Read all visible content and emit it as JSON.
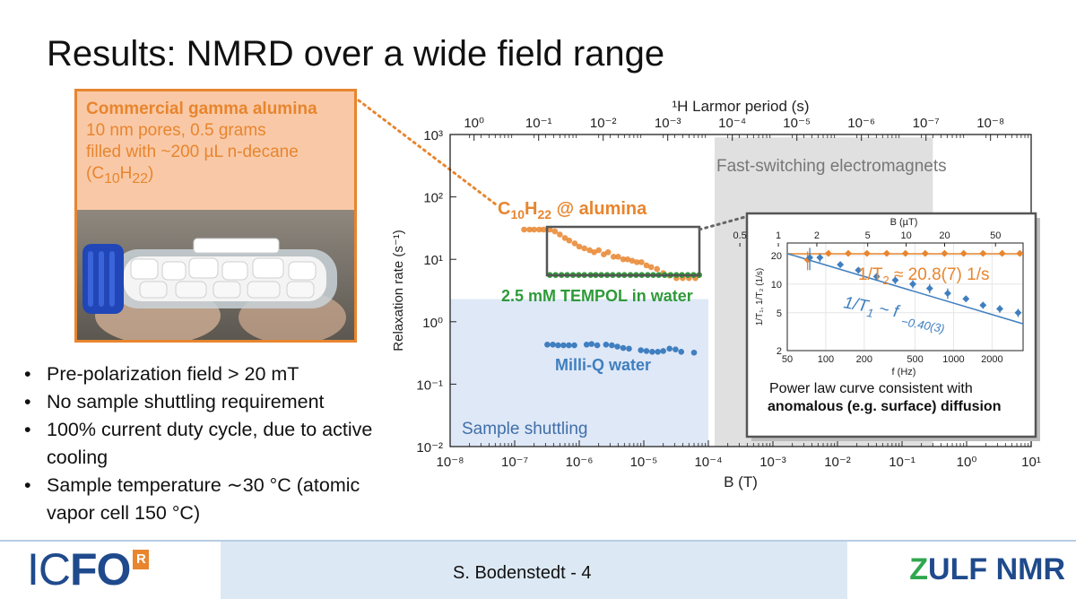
{
  "slide": {
    "title": "Results: NMRD over a wide field range",
    "infobox": {
      "heading": "Commercial gamma alumina",
      "line1": "10 nm pores, 0.5 grams",
      "line2": "filled with ~200 µL n-decane",
      "formula_main": "C",
      "formula_sub1": "10",
      "formula_mid": "H",
      "formula_sub2": "22",
      "formula_open": "(",
      "formula_close": ")"
    },
    "bullets": [
      "Pre-polarization field > 20 mT",
      "No sample shuttling requirement",
      "100% current duty cycle, due to active cooling",
      "Sample temperature ∼30 °C (atomic vapor cell 150 °C)"
    ],
    "footer": {
      "text": "S. Bodenstedt - 4",
      "logo_left_a": "IC",
      "logo_left_b": "FO",
      "logo_left_mark": "R",
      "logo_right_a": "Z",
      "logo_right_b": "ULF NMR"
    }
  },
  "chart_data": [
    {
      "type": "scatter",
      "x_scale": "log",
      "y_scale": "log",
      "xlabel": "B (T)",
      "ylabel": "Relaxation rate (s⁻¹)",
      "top_axis_label": "¹H Larmor period (s)",
      "xlim": [
        1e-08,
        10
      ],
      "ylim": [
        0.01,
        1000
      ],
      "x_tick_labels": [
        "10⁻⁸",
        "10⁻⁷",
        "10⁻⁶",
        "10⁻⁵",
        "10⁻⁴",
        "10⁻³",
        "10⁻²",
        "10⁻¹",
        "10⁰",
        "10¹"
      ],
      "y_tick_labels": [
        "10⁻²",
        "10⁻¹",
        "10⁰",
        "10¹",
        "10²",
        "10³"
      ],
      "top_tick_labels": [
        "10⁰",
        "10⁻¹",
        "10⁻²",
        "10⁻³",
        "10⁻⁴",
        "10⁻⁵",
        "10⁻⁶",
        "10⁻⁷",
        "10⁻⁸"
      ],
      "regions": [
        {
          "label": "Sample shuttling",
          "x_range": [
            1e-08,
            0.0001
          ],
          "y_range": [
            0.01,
            2.3
          ],
          "color": "#dfe8f7"
        },
        {
          "label": "Fast-switching electromagnets",
          "x_range": [
            0.000125,
            0.3
          ],
          "y_range": [
            0.01,
            900
          ],
          "color": "#e0e0e0"
        }
      ],
      "series": [
        {
          "name": "C₁₀H₂₂ @ alumina",
          "label_main": "C",
          "label_sub1": "10",
          "label_mid": "H",
          "label_sub2": "22",
          "label_rest": " @ alumina",
          "color": "#e8852e",
          "points": [
            [
              1.4e-07,
              30
            ],
            [
              1.7e-07,
              30
            ],
            [
              2e-07,
              30
            ],
            [
              2.4e-07,
              30
            ],
            [
              2.8e-07,
              30
            ],
            [
              3.5e-07,
              30
            ],
            [
              4.2e-07,
              28
            ],
            [
              5e-07,
              25
            ],
            [
              6e-07,
              22
            ],
            [
              7e-07,
              20
            ],
            [
              8.5e-07,
              18
            ],
            [
              1e-06,
              16
            ],
            [
              1.2e-06,
              15
            ],
            [
              1.45e-06,
              14
            ],
            [
              1.7e-06,
              13
            ],
            [
              2e-06,
              14
            ],
            [
              2.4e-06,
              12
            ],
            [
              2.8e-06,
              13
            ],
            [
              3.4e-06,
              11
            ],
            [
              4e-06,
              11
            ],
            [
              4.8e-06,
              10
            ],
            [
              5.6e-06,
              10
            ],
            [
              6.6e-06,
              9.5
            ],
            [
              7.8e-06,
              9
            ],
            [
              9.2e-06,
              9
            ],
            [
              1.1e-05,
              8
            ],
            [
              1.3e-05,
              7.5
            ],
            [
              1.6e-05,
              7
            ],
            [
              2e-05,
              6
            ],
            [
              2.5e-05,
              5.5
            ],
            [
              3.2e-05,
              5
            ],
            [
              4e-05,
              5
            ],
            [
              5e-05,
              5
            ],
            [
              6.3e-05,
              5
            ]
          ]
        },
        {
          "name": "2.5 mM TEMPOL in water",
          "color": "#2f9a3a",
          "points": [
            [
              3.5e-07,
              5.6
            ],
            [
              4.3e-07,
              5.6
            ],
            [
              5.3e-07,
              5.6
            ],
            [
              6.5e-07,
              5.6
            ],
            [
              8e-07,
              5.6
            ],
            [
              9.8e-07,
              5.6
            ],
            [
              1.2e-06,
              5.6
            ],
            [
              1.5e-06,
              5.6
            ],
            [
              1.8e-06,
              5.6
            ],
            [
              2.2e-06,
              5.6
            ],
            [
              2.7e-06,
              5.6
            ],
            [
              3.3e-06,
              5.6
            ],
            [
              4.1e-06,
              5.6
            ],
            [
              5e-06,
              5.6
            ],
            [
              6.2e-06,
              5.6
            ],
            [
              7.6e-06,
              5.6
            ],
            [
              9.3e-06,
              5.6
            ],
            [
              1.15e-05,
              5.6
            ],
            [
              1.4e-05,
              5.6
            ],
            [
              1.7e-05,
              5.6
            ],
            [
              2.1e-05,
              5.6
            ],
            [
              2.6e-05,
              5.6
            ],
            [
              3.2e-05,
              5.6
            ],
            [
              3.9e-05,
              5.6
            ],
            [
              4.8e-05,
              5.6
            ],
            [
              5.9e-05,
              5.6
            ],
            [
              7.2e-05,
              5.6
            ]
          ]
        },
        {
          "name": "Milli-Q water",
          "color": "#3f7fc0",
          "points": [
            [
              3.2e-07,
              0.43
            ],
            [
              3.9e-07,
              0.43
            ],
            [
              4.7e-07,
              0.42
            ],
            [
              5.7e-07,
              0.42
            ],
            [
              6.9e-07,
              0.42
            ],
            [
              8.4e-07,
              0.42
            ],
            [
              1.3e-06,
              0.43
            ],
            [
              1.55e-06,
              0.44
            ],
            [
              1.9e-06,
              0.42
            ],
            [
              2.6e-06,
              0.43
            ],
            [
              3.2e-06,
              0.42
            ],
            [
              3.9e-06,
              0.4
            ],
            [
              4.8e-06,
              0.38
            ],
            [
              5.9e-06,
              0.37
            ],
            [
              9e-06,
              0.35
            ],
            [
              1.1e-05,
              0.34
            ],
            [
              1.35e-05,
              0.33
            ],
            [
              1.65e-05,
              0.33
            ],
            [
              2e-05,
              0.34
            ],
            [
              2.5e-05,
              0.37
            ],
            [
              3.1e-05,
              0.36
            ],
            [
              3.8e-05,
              0.33
            ],
            [
              6e-05,
              0.32
            ]
          ]
        }
      ]
    },
    {
      "type": "scatter",
      "x_scale": "log",
      "y_scale": "log",
      "xlabel": "f (Hz)",
      "ylabel": "1/T₁, 1/T₂ (1/s)",
      "top_axis_label": "B (µT)",
      "xlim": [
        50,
        3500
      ],
      "ylim": [
        2,
        27
      ],
      "x_tick_labels": [
        "50",
        "100",
        "200",
        "500",
        "1000",
        "2000"
      ],
      "x_ticks": [
        50,
        100,
        200,
        500,
        1000,
        2000
      ],
      "y_tick_labels": [
        "2",
        "5",
        "10",
        "20"
      ],
      "y_ticks": [
        2,
        5,
        10,
        20
      ],
      "top_tick_labels": [
        "0.5",
        "1",
        "2",
        "5",
        "10",
        "20",
        "50"
      ],
      "top_ticks": [
        0.5,
        1,
        2,
        5,
        10,
        20,
        50
      ],
      "caption": "Power law curve consistent with",
      "caption_bold": "anomalous (e.g. surface) diffusion",
      "series": [
        {
          "name": "T2",
          "label_a": "1/T",
          "label_sub": "2",
          "label_b": " ≈ 20.8(7) 1/s",
          "color": "#e8852e",
          "fit": 20.8,
          "points": [
            [
              72,
              18,
              4
            ],
            [
              105,
              21,
              1.5
            ],
            [
              150,
              21,
              1.5
            ],
            [
              210,
              21,
              1.5
            ],
            [
              300,
              21,
              1.5
            ],
            [
              420,
              21,
              1.5
            ],
            [
              600,
              21,
              1.5
            ],
            [
              850,
              21,
              1.5
            ],
            [
              1200,
              21,
              1.5
            ],
            [
              1700,
              21,
              1.5
            ],
            [
              2400,
              21,
              1.5
            ],
            [
              3300,
              21,
              1.5
            ]
          ]
        },
        {
          "name": "T1",
          "label_a": "1/T",
          "label_sub": "1",
          "label_b": " ~ f ",
          "label_exp": "−0.40(3)",
          "color": "#3f7fc0",
          "fit_prefactor": 100,
          "fit_exponent": -0.4,
          "points": [
            [
              75,
              19,
              5
            ],
            [
              90,
              19,
              2
            ],
            [
              130,
              16,
              1
            ],
            [
              180,
              14,
              1
            ],
            [
              250,
              12,
              1
            ],
            [
              350,
              11,
              1
            ],
            [
              480,
              10,
              1
            ],
            [
              650,
              9,
              1
            ],
            [
              900,
              8,
              1
            ],
            [
              1250,
              7,
              0.5
            ],
            [
              1700,
              6,
              0.5
            ],
            [
              2300,
              5.5,
              0.5
            ],
            [
              3200,
              5,
              0.5
            ]
          ]
        }
      ]
    }
  ]
}
